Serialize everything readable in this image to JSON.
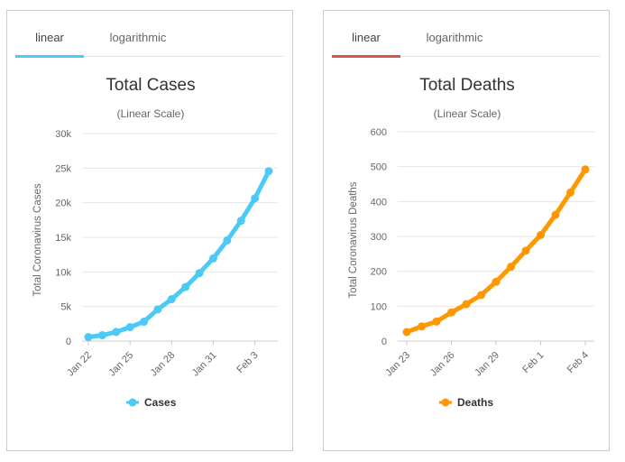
{
  "panels": [
    {
      "tabs": [
        "linear",
        "logarithmic"
      ],
      "accent": "#4dc9f6",
      "chart_data": {
        "type": "line",
        "title": "Total Cases",
        "subtitle": "(Linear Scale)",
        "ylabel": "Total Coronavirus Cases",
        "ylim": [
          0,
          30000
        ],
        "yticks": [
          0,
          5000,
          10000,
          15000,
          20000,
          25000,
          30000
        ],
        "ytick_labels": [
          "0",
          "5k",
          "10k",
          "15k",
          "20k",
          "25k",
          "30k"
        ],
        "x": [
          "Jan 22",
          "Jan 23",
          "Jan 24",
          "Jan 25",
          "Jan 26",
          "Jan 27",
          "Jan 28",
          "Jan 29",
          "Jan 30",
          "Jan 31",
          "Feb 1",
          "Feb 2",
          "Feb 3",
          "Feb 4"
        ],
        "xtick_labels": [
          "Jan 22",
          "Jan 25",
          "Jan 28",
          "Jan 31",
          "Feb 3"
        ],
        "series": [
          {
            "name": "Cases",
            "color": "#4dc9f6",
            "values": [
              580,
              845,
              1317,
              2015,
              2800,
              4581,
              6058,
              7813,
              9823,
              11950,
              14553,
              17391,
              20630,
              24554
            ]
          }
        ],
        "legend_position": "bottom",
        "grid": true
      }
    },
    {
      "tabs": [
        "linear",
        "logarithmic"
      ],
      "accent": "#d9534f",
      "chart_data": {
        "type": "line",
        "title": "Total Deaths",
        "subtitle": "(Linear Scale)",
        "ylabel": "Total Coronavirus Deaths",
        "ylim": [
          0,
          600
        ],
        "yticks": [
          0,
          100,
          200,
          300,
          400,
          500,
          600
        ],
        "ytick_labels": [
          "0",
          "100",
          "200",
          "300",
          "400",
          "500",
          "600"
        ],
        "x": [
          "Jan 23",
          "Jan 24",
          "Jan 25",
          "Jan 26",
          "Jan 27",
          "Jan 28",
          "Jan 29",
          "Jan 30",
          "Jan 31",
          "Feb 1",
          "Feb 2",
          "Feb 3",
          "Feb 4"
        ],
        "xtick_labels": [
          "Jan 23",
          "Jan 26",
          "Jan 29",
          "Feb 1",
          "Feb 4"
        ],
        "series": [
          {
            "name": "Deaths",
            "color": "#ff9800",
            "values": [
              26,
              42,
              56,
              82,
              106,
              132,
              170,
              213,
              259,
              304,
              362,
              426,
              492
            ]
          }
        ],
        "legend_position": "bottom",
        "grid": true
      }
    }
  ]
}
